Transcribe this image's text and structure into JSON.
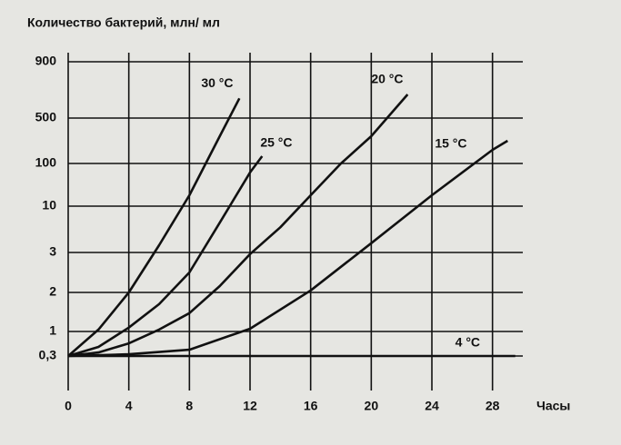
{
  "chart_data": {
    "type": "line",
    "title": "Количество бактерий, млн/ мл",
    "x_label": "Часы",
    "xlim": [
      0,
      30
    ],
    "xticks": [
      0,
      4,
      8,
      12,
      16,
      20,
      24,
      28
    ],
    "ylim": [
      0.3,
      900
    ],
    "yticks": [
      {
        "value": 0.3,
        "label": "0,3"
      },
      1,
      2,
      3,
      10,
      100,
      500,
      900
    ],
    "grid": true,
    "series": [
      {
        "name": "30 °C",
        "color": "#111111",
        "x": [
          0,
          2,
          4,
          6,
          8,
          10,
          11.3
        ],
        "values": [
          0.3,
          1.05,
          2,
          4.1,
          33,
          340,
          640
        ]
      },
      {
        "name": "25 °C",
        "color": "#111111",
        "x": [
          0,
          2,
          4,
          6,
          8,
          10,
          12,
          12.8
        ],
        "values": [
          0.3,
          0.56,
          1.1,
          1.7,
          2.5,
          7.5,
          81,
          164
        ]
      },
      {
        "name": "20 °C",
        "color": "#111111",
        "x": [
          0,
          2,
          4,
          6,
          8,
          10,
          12,
          14,
          16,
          18,
          20,
          22.4
        ],
        "values": [
          0.3,
          0.4,
          0.66,
          1.05,
          1.47,
          2.16,
          2.96,
          6.8,
          33,
          100,
          340,
          668
        ]
      },
      {
        "name": "15 °C",
        "color": "#111111",
        "x": [
          0,
          4,
          8,
          12,
          16,
          20,
          24,
          28,
          29
        ],
        "values": [
          0.3,
          0.35,
          0.48,
          1.07,
          2.05,
          4.4,
          33,
          220,
          300
        ]
      },
      {
        "name": "4 °C",
        "color": "#111111",
        "x": [
          0,
          29.5
        ],
        "values": [
          0.3,
          0.3
        ]
      }
    ]
  }
}
